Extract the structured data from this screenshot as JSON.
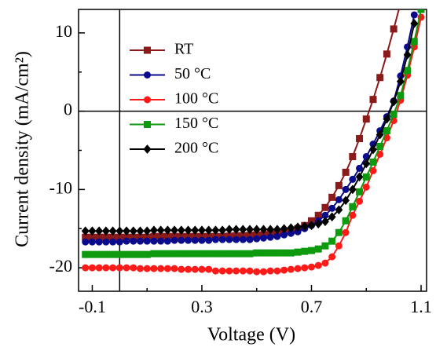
{
  "chart_data": {
    "type": "line",
    "x_label": "Voltage (V)",
    "y_label": "Current density (mA/cm²)",
    "x": [
      -0.125,
      -0.1,
      -0.075,
      -0.05,
      -0.025,
      0,
      0.025,
      0.05,
      0.075,
      0.1,
      0.125,
      0.15,
      0.175,
      0.2,
      0.225,
      0.25,
      0.275,
      0.3,
      0.325,
      0.35,
      0.375,
      0.4,
      0.425,
      0.45,
      0.475,
      0.5,
      0.525,
      0.55,
      0.575,
      0.6,
      0.625,
      0.65,
      0.675,
      0.7,
      0.725,
      0.75,
      0.775,
      0.8,
      0.825,
      0.85,
      0.875,
      0.9,
      0.925,
      0.95,
      0.975,
      1.0,
      1.025,
      1.05,
      1.075,
      1.1
    ],
    "series": [
      {
        "name": "RT",
        "color": "#8b1a1a",
        "marker": "square",
        "values": [
          -16.1,
          -16.1,
          -16.1,
          -16.1,
          -16.1,
          -16.1,
          -16.1,
          -16.1,
          -16.1,
          -16.1,
          -16.0,
          -16.0,
          -16.0,
          -16.0,
          -16.0,
          -16.0,
          -16.0,
          -16.0,
          -16.0,
          -16.0,
          -16.0,
          -15.95,
          -15.9,
          -15.9,
          -15.85,
          -15.8,
          -15.8,
          -15.7,
          -15.6,
          -15.5,
          -15.3,
          -15.0,
          -14.6,
          -14.0,
          -13.3,
          -12.3,
          -11.0,
          -9.5,
          -7.8,
          -5.8,
          -3.5,
          -1.0,
          1.5,
          4.3,
          7.3,
          10.5,
          13.8,
          null,
          null,
          null
        ]
      },
      {
        "name": "50 °C",
        "color": "#0a0a8c",
        "marker": "circle",
        "values": [
          -16.7,
          -16.7,
          -16.7,
          -16.7,
          -16.7,
          -16.7,
          -16.6,
          -16.6,
          -16.6,
          -16.6,
          -16.6,
          -16.6,
          -16.6,
          -16.5,
          -16.5,
          -16.5,
          -16.5,
          -16.5,
          -16.5,
          -16.4,
          -16.4,
          -16.4,
          -16.4,
          -16.4,
          -16.4,
          -16.3,
          -16.2,
          -16.1,
          -16.0,
          -15.8,
          -15.6,
          -15.4,
          -15.0,
          -14.6,
          -14.0,
          -13.3,
          -12.4,
          -11.3,
          -10.0,
          -8.7,
          -7.3,
          -5.8,
          -4.2,
          -2.5,
          -0.7,
          1.3,
          4.5,
          8.2,
          12.3,
          null
        ]
      },
      {
        "name": "100 °C",
        "color": "#ff1a1a",
        "marker": "circle",
        "values": [
          -20.0,
          -20.0,
          -20.0,
          -20.0,
          -20.0,
          -20.0,
          -20.0,
          -20.0,
          -20.1,
          -20.1,
          -20.1,
          -20.1,
          -20.1,
          -20.1,
          -20.2,
          -20.2,
          -20.2,
          -20.2,
          -20.2,
          -20.4,
          -20.4,
          -20.4,
          -20.4,
          -20.4,
          -20.4,
          -20.5,
          -20.5,
          -20.4,
          -20.4,
          -20.3,
          -20.2,
          -20.1,
          -20.0,
          -19.9,
          -19.7,
          -19.4,
          -18.6,
          -17.2,
          -15.5,
          -13.3,
          -11.5,
          -9.7,
          -7.6,
          -5.5,
          -3.4,
          -1.2,
          1.4,
          4.6,
          8.2,
          12.0
        ]
      },
      {
        "name": "150 °C",
        "color": "#0e9a0e",
        "marker": "square",
        "values": [
          -18.3,
          -18.3,
          -18.3,
          -18.3,
          -18.3,
          -18.3,
          -18.3,
          -18.3,
          -18.3,
          -18.3,
          -18.2,
          -18.2,
          -18.2,
          -18.2,
          -18.2,
          -18.2,
          -18.2,
          -18.2,
          -18.2,
          -18.2,
          -18.2,
          -18.2,
          -18.2,
          -18.2,
          -18.2,
          -18.1,
          -18.1,
          -18.1,
          -18.1,
          -18.1,
          -18.1,
          -18.0,
          -17.9,
          -17.8,
          -17.6,
          -17.2,
          -16.6,
          -15.5,
          -14.0,
          -12.2,
          -10.3,
          -8.4,
          -6.5,
          -4.5,
          -2.5,
          -0.4,
          2.0,
          5.2,
          8.9,
          13.0
        ]
      },
      {
        "name": "200 °C",
        "color": "#000000",
        "marker": "diamond",
        "values": [
          -15.3,
          -15.3,
          -15.3,
          -15.3,
          -15.3,
          -15.3,
          -15.3,
          -15.3,
          -15.3,
          -15.3,
          -15.2,
          -15.2,
          -15.2,
          -15.2,
          -15.2,
          -15.2,
          -15.2,
          -15.2,
          -15.2,
          -15.2,
          -15.2,
          -15.1,
          -15.1,
          -15.1,
          -15.1,
          -15.1,
          -15.1,
          -15.1,
          -15.1,
          -15.0,
          -14.9,
          -14.8,
          -14.7,
          -14.6,
          -14.4,
          -14.1,
          -13.5,
          -12.6,
          -11.4,
          -10.0,
          -8.4,
          -6.7,
          -4.9,
          -3.0,
          -1.0,
          1.2,
          3.8,
          7.2,
          11.2,
          null
        ]
      }
    ],
    "xlim": [
      -0.15,
      1.12
    ],
    "ylim": [
      -23,
      13
    ],
    "xticks": [
      -0.1,
      0.3,
      0.7,
      1.1
    ],
    "yticks": [
      -20,
      -10,
      0,
      10
    ],
    "xminor_ticks": [
      0.1,
      0.5,
      0.9
    ],
    "yminor_ticks": [
      -15,
      -5,
      5
    ],
    "zero_lines": true,
    "legend": "upper left"
  }
}
